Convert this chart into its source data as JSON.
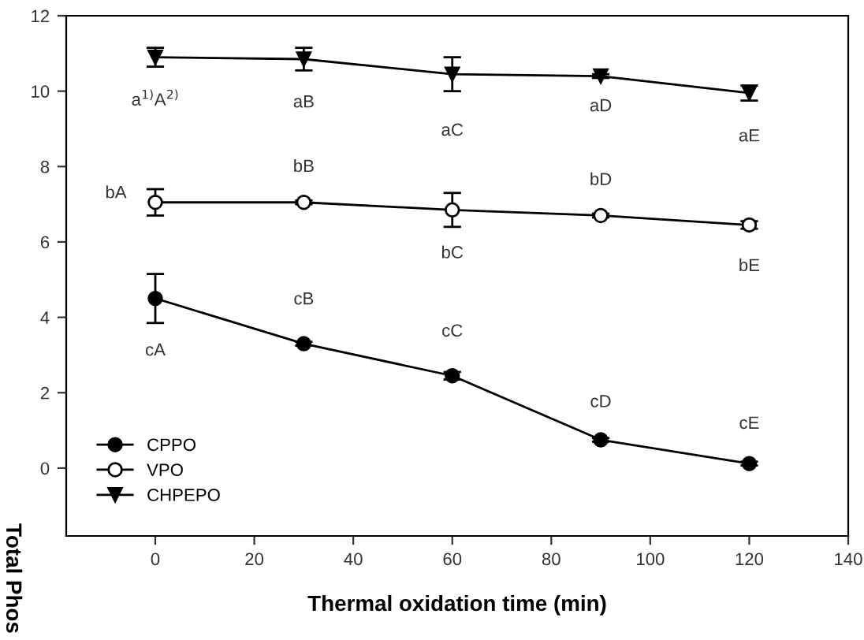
{
  "chart_data": {
    "type": "line",
    "xlabel": "Thermal oxidation time (min)",
    "ylabel": "Total Phos",
    "x": [
      0,
      30,
      60,
      90,
      120
    ],
    "series": [
      {
        "name": "CPPO",
        "color": "#000000",
        "marker": "circle",
        "values": [
          4.5,
          3.3,
          2.45,
          0.75,
          0.12
        ],
        "errors": [
          0.65,
          0.05,
          0.1,
          0.05,
          0.05
        ]
      },
      {
        "name": "VPO",
        "color": "#000000",
        "marker": "circle_open",
        "values": [
          7.05,
          7.05,
          6.85,
          6.7,
          6.45
        ],
        "errors": [
          0.35,
          0.05,
          0.45,
          0.05,
          0.1
        ]
      },
      {
        "name": "CHPEPO",
        "color": "#000000",
        "marker": "triangle",
        "values": [
          10.9,
          10.85,
          10.45,
          10.4,
          9.95
        ],
        "errors": [
          0.25,
          0.3,
          0.45,
          0.05,
          0.2
        ]
      }
    ],
    "annotations": [
      {
        "text": "a$^{1)}$A$^{2)}$",
        "x": 0,
        "y": 10.9
      },
      {
        "text": "aB",
        "x": 30,
        "y": 10.85
      },
      {
        "text": "aC",
        "x": 60,
        "y": 10.45
      },
      {
        "text": "aD",
        "x": 90,
        "y": 10.4
      },
      {
        "text": "aE",
        "x": 120,
        "y": 9.95
      },
      {
        "text": "bA",
        "x": 0,
        "y": 7.05
      },
      {
        "text": "bB",
        "x": 30,
        "y": 7.05
      },
      {
        "text": "bC",
        "x": 60,
        "y": 6.85
      },
      {
        "text": "bD",
        "x": 90,
        "y": 6.7
      },
      {
        "text": "bE",
        "x": 120,
        "y": 6.45
      },
      {
        "text": "cA",
        "x": 0,
        "y": 4.5
      },
      {
        "text": "cB",
        "x": 30,
        "y": 3.3
      },
      {
        "text": "cC",
        "x": 60,
        "y": 2.45
      },
      {
        "text": "cD",
        "x": 90,
        "y": 0.75
      },
      {
        "text": "cE",
        "x": 120,
        "y": 0.12
      }
    ],
    "xlim": [
      -18,
      140
    ],
    "xticks": [
      0,
      20,
      40,
      60,
      80,
      100,
      120,
      140
    ],
    "ylim": [
      -1.8,
      12
    ],
    "yticks": [
      0,
      2,
      4,
      6,
      8,
      10,
      12
    ],
    "grid": false,
    "legend": "bottom left",
    "line_style": "solid"
  }
}
